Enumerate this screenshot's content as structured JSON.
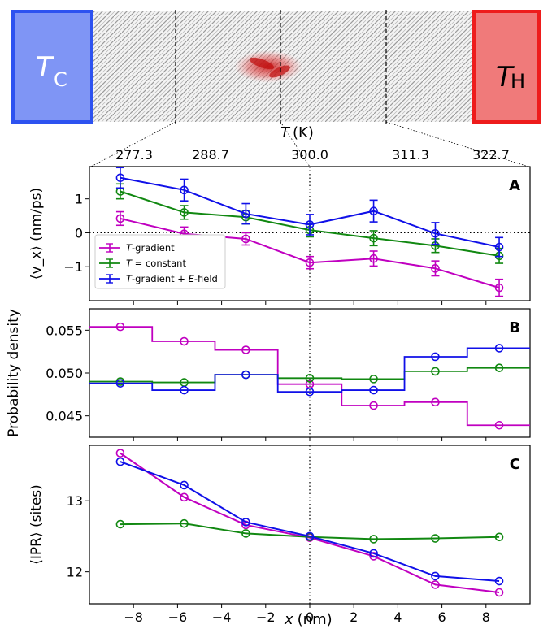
{
  "schematic": {
    "cold_label_main": "T",
    "cold_label_sub": "C",
    "hot_label_main": "T",
    "hot_label_sub": "H",
    "cold_color": "#2d52f0",
    "cold_fill": "#7f95f5",
    "hot_color": "#ee1c1c",
    "hot_fill": "#f07a7a"
  },
  "top_axis": {
    "label_main": "T",
    "label_unit": "(K)",
    "ticks": [
      "277.3",
      "288.7",
      "300.0",
      "311.3",
      "322.7"
    ]
  },
  "legend": {
    "items": [
      {
        "prefix": "T",
        "suffix": "-gradient",
        "color": "#c000c0"
      },
      {
        "prefix": "T",
        "suffix": " = constant",
        "color": "#118811"
      },
      {
        "prefix": "T",
        "suffix": "-gradient + ",
        "prefix2": "E",
        "suffix2": "-field",
        "color": "#1010e8"
      }
    ]
  },
  "x_axis": {
    "label_main": "x",
    "label_unit": "(nm)",
    "ticks": [
      "−8",
      "−6",
      "−4",
      "−2",
      "0",
      "2",
      "4",
      "6",
      "8"
    ]
  },
  "chart_data": [
    {
      "panel": "A",
      "type": "line",
      "ylabel": "⟨v_x⟩ (nm/ps)",
      "ylim": [
        -2.0,
        1.95
      ],
      "yticks": [
        -1,
        0,
        1
      ],
      "x": [
        -8.6,
        -5.7,
        -2.9,
        0.0,
        2.9,
        5.7,
        8.6
      ],
      "series": [
        {
          "name": "T-gradient",
          "color": "#c000c0",
          "values": [
            0.42,
            -0.03,
            -0.18,
            -0.88,
            -0.76,
            -1.05,
            -1.62
          ],
          "errors": [
            0.2,
            0.2,
            0.18,
            0.18,
            0.22,
            0.22,
            0.25
          ]
        },
        {
          "name": "T = constant",
          "color": "#118811",
          "values": [
            1.22,
            0.6,
            0.46,
            0.08,
            -0.16,
            -0.38,
            -0.68
          ],
          "errors": [
            0.22,
            0.2,
            0.2,
            0.2,
            0.22,
            0.2,
            0.22
          ]
        },
        {
          "name": "T-gradient + E-field",
          "color": "#1010e8",
          "values": [
            1.62,
            1.26,
            0.56,
            0.24,
            0.64,
            -0.02,
            -0.42
          ],
          "errors": [
            0.3,
            0.32,
            0.3,
            0.3,
            0.32,
            0.32,
            0.28
          ]
        }
      ]
    },
    {
      "panel": "B",
      "type": "step",
      "ylabel": "Probability density",
      "ylim": [
        0.0425,
        0.0575
      ],
      "yticks": [
        "0.045",
        "0.050",
        "0.055"
      ],
      "x": [
        -8.6,
        -5.7,
        -2.9,
        0.0,
        2.9,
        5.7,
        8.6
      ],
      "series": [
        {
          "name": "T-gradient",
          "color": "#c000c0",
          "values": [
            0.0554,
            0.0537,
            0.0527,
            0.0487,
            0.0462,
            0.0466,
            0.0439
          ]
        },
        {
          "name": "T = constant",
          "color": "#118811",
          "values": [
            0.049,
            0.0489,
            0.0498,
            0.0494,
            0.0493,
            0.0502,
            0.0506
          ]
        },
        {
          "name": "T-gradient + E-field",
          "color": "#1010e8",
          "values": [
            0.0488,
            0.048,
            0.0498,
            0.0478,
            0.048,
            0.0519,
            0.0529
          ]
        }
      ]
    },
    {
      "panel": "C",
      "type": "line",
      "ylabel": "⟨IPR⟩ (sites)",
      "ylim": [
        11.55,
        13.78
      ],
      "yticks": [
        12,
        13
      ],
      "x": [
        -8.6,
        -5.7,
        -2.9,
        0.0,
        2.9,
        5.7,
        8.6
      ],
      "series": [
        {
          "name": "T-gradient",
          "color": "#c000c0",
          "values": [
            13.67,
            13.05,
            12.66,
            12.48,
            12.22,
            11.82,
            11.71
          ]
        },
        {
          "name": "T = constant",
          "color": "#118811",
          "values": [
            12.67,
            12.68,
            12.54,
            12.49,
            12.46,
            12.47,
            12.49
          ]
        },
        {
          "name": "T-gradient + E-field",
          "color": "#1010e8",
          "values": [
            13.55,
            13.22,
            12.7,
            12.5,
            12.26,
            11.94,
            11.87
          ]
        }
      ]
    }
  ],
  "xlim": [
    -10,
    10
  ]
}
